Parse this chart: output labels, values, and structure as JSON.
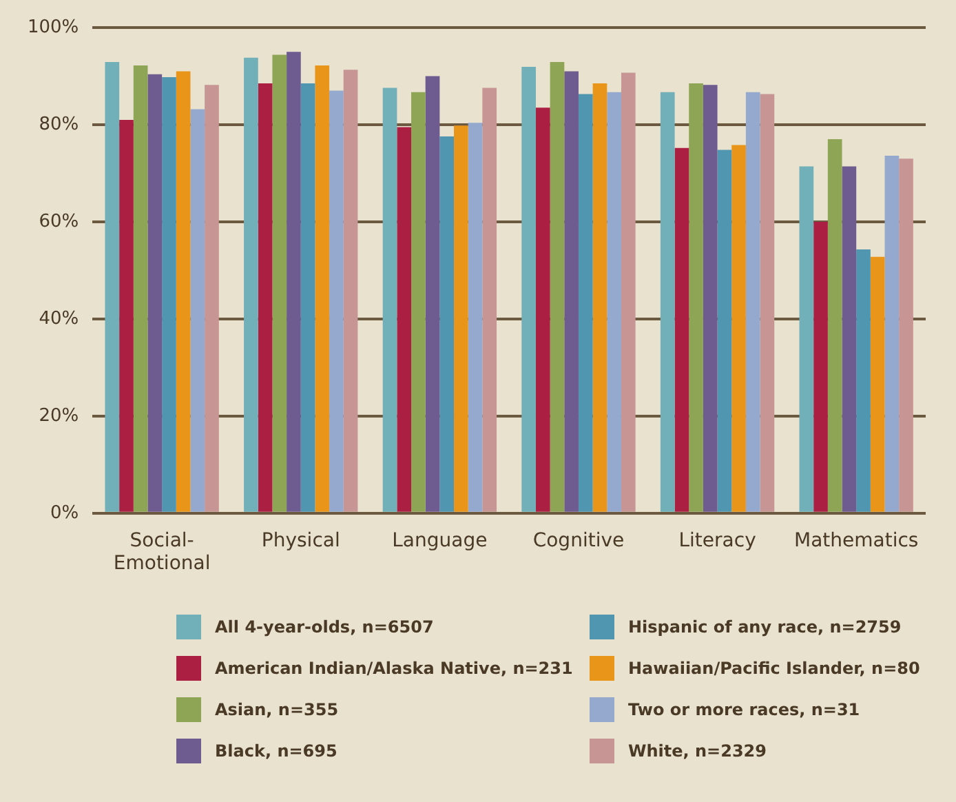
{
  "chart_data": {
    "type": "bar",
    "categories": [
      "Social-Emotional",
      "Physical",
      "Language",
      "Cognitive",
      "Literacy",
      "Mathematics"
    ],
    "series": [
      {
        "name": "All 4-year-olds, n=6507",
        "color": "#71b0b8",
        "values": [
          92.9,
          93.8,
          87.6,
          91.9,
          86.7,
          71.4
        ]
      },
      {
        "name": "American Indian/Alaska Native, n=231",
        "color": "#ab1f43",
        "values": [
          81,
          88.5,
          79.5,
          83.5,
          75.2,
          60
        ]
      },
      {
        "name": "Asian, n=355",
        "color": "#8ea555",
        "values": [
          92.2,
          94.4,
          86.7,
          92.9,
          88.5,
          77
        ]
      },
      {
        "name": "Black, n=695",
        "color": "#6e5c90",
        "values": [
          90.4,
          95,
          90,
          91,
          88.2,
          71.4
        ]
      },
      {
        "name": "Hispanic of any race, n=2759",
        "color": "#5196b0",
        "values": [
          89.8,
          88.5,
          77.6,
          86.3,
          74.8,
          54.3
        ]
      },
      {
        "name": "Hawaiian/Pacific Islander, n=80",
        "color": "#e8951a",
        "values": [
          91,
          92.2,
          79.8,
          88.5,
          75.8,
          52.8
        ]
      },
      {
        "name": "Two or more races, n=31",
        "color": "#95a9cf",
        "values": [
          83.2,
          87,
          80.4,
          86.7,
          86.7,
          73.6
        ]
      },
      {
        "name": "White, n=2329",
        "color": "#c79593",
        "values": [
          88.2,
          91.3,
          87.6,
          90.7,
          86.3,
          73
        ]
      }
    ],
    "ylim": [
      0,
      100
    ],
    "yticks": [
      {
        "value": 0,
        "label": "0%"
      },
      {
        "value": 20,
        "label": "20%"
      },
      {
        "value": 40,
        "label": "40%"
      },
      {
        "value": 60,
        "label": "60%"
      },
      {
        "value": 80,
        "label": "80%"
      },
      {
        "value": 100,
        "label": "100%"
      }
    ],
    "grid": "y",
    "legend": "bottom"
  }
}
